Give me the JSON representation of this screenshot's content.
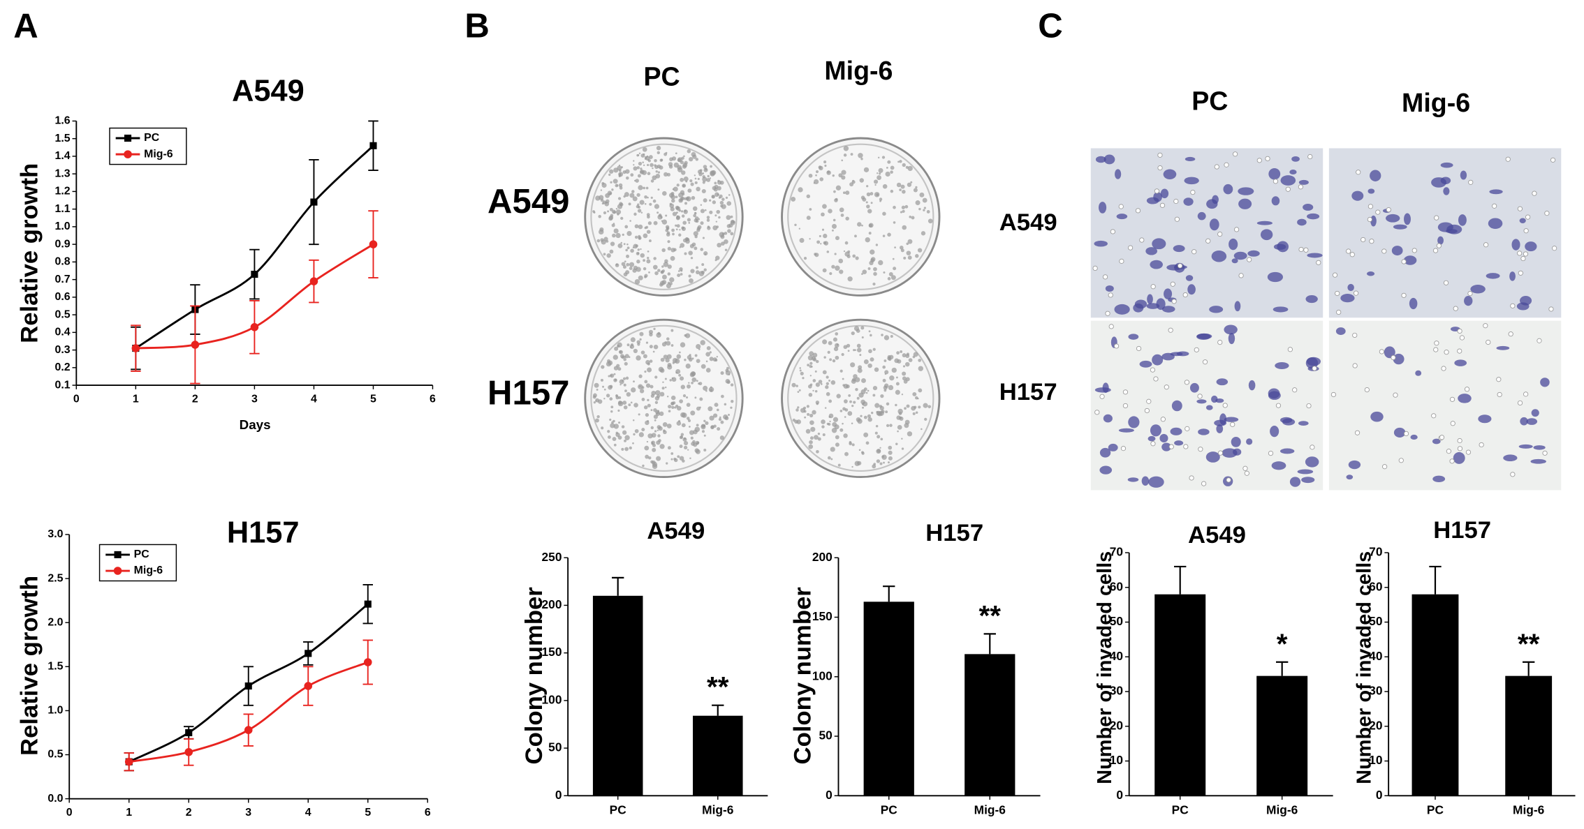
{
  "figure": {
    "panel_labels": [
      "A",
      "B",
      "C"
    ],
    "colony_columns": [
      "PC",
      "Mig-6"
    ],
    "colony_rows": [
      "A549",
      "H157"
    ],
    "invasion_columns": [
      "PC",
      "Mig-6"
    ],
    "invasion_rows": [
      "A549",
      "H157"
    ]
  },
  "chart_data": [
    {
      "type": "line",
      "title": "A549",
      "y_label": "Relative growth",
      "x_label": "Days",
      "legend": "upper left",
      "x": [
        1,
        2,
        3,
        4,
        5
      ],
      "xlim": [
        0,
        6
      ],
      "xticks": [
        0,
        1,
        2,
        3,
        4,
        5,
        6
      ],
      "ylim": [
        0.1,
        1.6
      ],
      "yticks": [
        0.1,
        0.2,
        0.3,
        0.4,
        0.5,
        0.6,
        0.7,
        0.8,
        0.9,
        {
          "value": 1,
          "label": "1.0"
        },
        1.1,
        1.2,
        1.3,
        1.4,
        1.5,
        1.6
      ],
      "series": [
        {
          "name": "PC",
          "color": "#000000",
          "marker": "square",
          "values": [
            0.31,
            0.53,
            0.73,
            1.14,
            1.46
          ],
          "errors": [
            0.12,
            0.14,
            0.14,
            0.24,
            0.14
          ]
        },
        {
          "name": "Mig-6",
          "color": "#e8231f",
          "marker": "circle",
          "values": [
            0.31,
            0.33,
            0.43,
            0.69,
            0.9
          ],
          "errors": [
            0.13,
            0.22,
            0.15,
            0.12,
            0.19
          ]
        }
      ]
    },
    {
      "type": "line",
      "title": "H157",
      "y_label": "Relative growth",
      "legend": "upper left",
      "x": [
        1,
        2,
        3,
        4,
        5
      ],
      "xlim": [
        0,
        6
      ],
      "xticks": [
        0,
        1,
        2,
        3,
        4,
        5,
        6
      ],
      "ylim": [
        0,
        3
      ],
      "yticks": [
        {
          "value": 0,
          "label": "0.0"
        },
        0.5,
        {
          "value": 1,
          "label": "1.0"
        },
        1.5,
        {
          "value": 2,
          "label": "2.0"
        },
        2.5,
        {
          "value": 3,
          "label": "3.0"
        }
      ],
      "series": [
        {
          "name": "PC",
          "color": "#000000",
          "marker": "square",
          "values": [
            0.42,
            0.75,
            1.28,
            1.65,
            2.21
          ],
          "errors": [
            0.1,
            0.07,
            0.22,
            0.13,
            0.22
          ]
        },
        {
          "name": "Mig-6",
          "color": "#e8231f",
          "marker": "circle",
          "values": [
            0.42,
            0.53,
            0.78,
            1.28,
            1.55
          ],
          "errors": [
            0.1,
            0.15,
            0.18,
            0.22,
            0.25
          ]
        }
      ]
    },
    {
      "type": "bar",
      "title": "A549",
      "y_label": "Colony number",
      "categories": [
        "PC",
        "Mig-6"
      ],
      "values": [
        210,
        84
      ],
      "errors": [
        19,
        11
      ],
      "significance": [
        null,
        "**"
      ],
      "color": "#000000",
      "ylim": [
        0,
        250
      ],
      "yticks": [
        0,
        50,
        100,
        150,
        200,
        250
      ]
    },
    {
      "type": "bar",
      "title": "H157",
      "y_label": "Colony number",
      "categories": [
        "PC",
        "Mig-6"
      ],
      "values": [
        163,
        119
      ],
      "errors": [
        13,
        17
      ],
      "significance": [
        null,
        "**"
      ],
      "color": "#000000",
      "ylim": [
        0,
        200
      ],
      "yticks": [
        0,
        50,
        100,
        150,
        200
      ]
    },
    {
      "type": "bar",
      "title": "A549",
      "y_label": "Number of invaded cells",
      "categories": [
        "PC",
        "Mig-6"
      ],
      "values": [
        58,
        34.5
      ],
      "errors": [
        8,
        4
      ],
      "significance": [
        null,
        "*"
      ],
      "color": "#000000",
      "ylim": [
        0,
        70
      ],
      "yticks": [
        0,
        10,
        20,
        30,
        40,
        50,
        60,
        70
      ]
    },
    {
      "type": "bar",
      "title": "H157",
      "y_label": "Number of invaded cells",
      "categories": [
        "PC",
        "Mig-6"
      ],
      "values": [
        58,
        34.5
      ],
      "errors": [
        8,
        4
      ],
      "significance": [
        null,
        "**"
      ],
      "color": "#000000",
      "ylim": [
        0,
        70
      ],
      "yticks": [
        0,
        10,
        20,
        30,
        40,
        50,
        60,
        70
      ]
    }
  ]
}
